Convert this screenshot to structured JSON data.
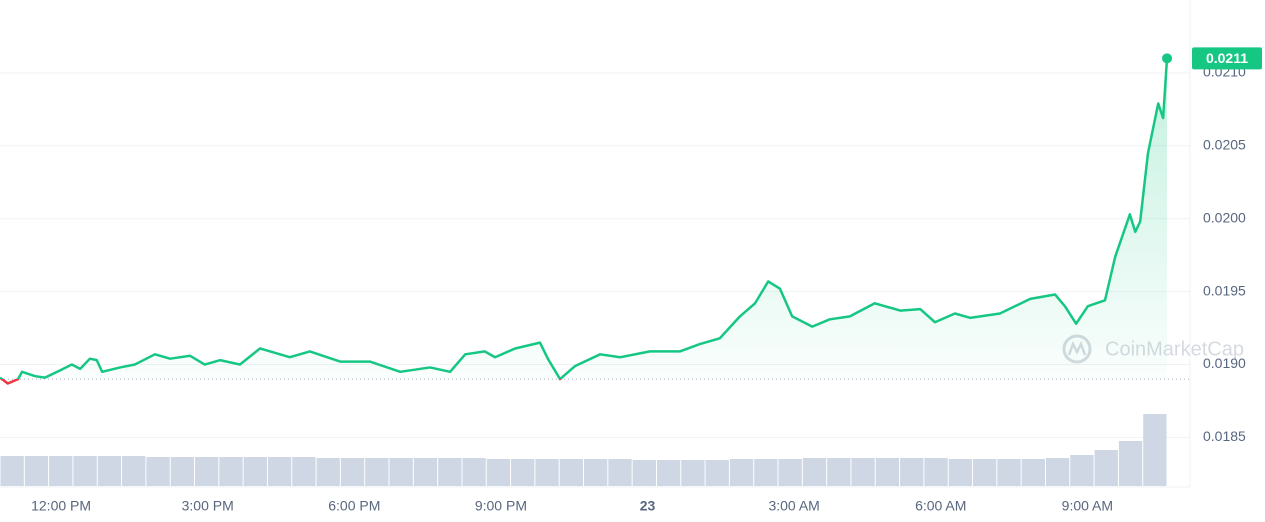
{
  "chart_data": {
    "type": "line",
    "series": [
      {
        "name": "Price",
        "color": "#16c784",
        "x": [
          -1.25,
          -1.09,
          -0.88,
          -0.8,
          -0.53,
          -0.33,
          -0.02,
          0.22,
          0.39,
          0.59,
          0.73,
          0.84,
          1.21,
          1.51,
          1.92,
          2.23,
          2.64,
          2.94,
          3.25,
          3.66,
          4.07,
          4.68,
          5.09,
          5.71,
          6.32,
          6.94,
          7.55,
          7.96,
          8.27,
          8.67,
          8.88,
          9.29,
          9.8,
          9.96,
          10.21,
          10.52,
          11.03,
          11.44,
          12.05,
          12.66,
          13.07,
          13.48,
          13.89,
          14.2,
          14.47,
          14.71,
          14.96,
          15.37,
          15.73,
          16.14,
          16.65,
          17.17,
          17.58,
          17.88,
          18.29,
          18.6,
          19.21,
          19.83,
          20.34,
          20.54,
          20.77,
          21.01,
          21.36,
          21.57,
          21.87,
          21.98,
          22.08,
          22.24,
          22.45,
          22.55,
          22.63
        ],
        "values": [
          0.01891,
          0.01887,
          0.0189,
          0.01895,
          0.01892,
          0.01891,
          0.01896,
          0.019,
          0.01897,
          0.01904,
          0.01903,
          0.01895,
          0.01898,
          0.019,
          0.01907,
          0.01904,
          0.01906,
          0.019,
          0.01903,
          0.019,
          0.01911,
          0.01905,
          0.01909,
          0.01902,
          0.01902,
          0.01895,
          0.01898,
          0.01895,
          0.01907,
          0.01909,
          0.01905,
          0.01911,
          0.01915,
          0.01904,
          0.0189,
          0.01899,
          0.01907,
          0.01905,
          0.01909,
          0.01909,
          0.01914,
          0.01918,
          0.01933,
          0.01942,
          0.01957,
          0.01952,
          0.01933,
          0.01926,
          0.01931,
          0.01933,
          0.01942,
          0.01937,
          0.01938,
          0.01929,
          0.01935,
          0.01932,
          0.01935,
          0.01945,
          0.01948,
          0.0194,
          0.01928,
          0.0194,
          0.01944,
          0.01974,
          0.02003,
          0.01991,
          0.01998,
          0.02045,
          0.02079,
          0.02069,
          0.0211
        ]
      }
    ],
    "down_color": "#ea3943",
    "baseline": 0.0189,
    "current_price": {
      "value": 0.0211,
      "label": "0.0211"
    },
    "volume": {
      "color": "#cfd6e4",
      "values": [
        30,
        30,
        30,
        30,
        30,
        30,
        29,
        29,
        29,
        29,
        29,
        29,
        29,
        28,
        28,
        28,
        28,
        28,
        28,
        28,
        27,
        27,
        27,
        27,
        27,
        27,
        26,
        26,
        26,
        26,
        27,
        27,
        27,
        28,
        28,
        28,
        28,
        28,
        28,
        27,
        27,
        27,
        27,
        28,
        31,
        36,
        45,
        72
      ]
    },
    "xlim": [
      -1.25,
      23.1
    ],
    "ylim": [
      0.01816,
      0.0215
    ],
    "xticks": [
      {
        "value": 0,
        "label": "12:00 PM"
      },
      {
        "value": 3,
        "label": "3:00 PM"
      },
      {
        "value": 6,
        "label": "6:00 PM"
      },
      {
        "value": 9,
        "label": "9:00 PM"
      },
      {
        "value": 12,
        "label": "23"
      },
      {
        "value": 15,
        "label": "3:00 AM"
      },
      {
        "value": 18,
        "label": "6:00 AM"
      },
      {
        "value": 21,
        "label": "9:00 AM"
      }
    ],
    "yticks": [
      0.0185,
      {
        "value": 0.019,
        "label": "0.0190"
      },
      0.0195,
      {
        "value": 0.02,
        "label": "0.0200"
      },
      0.0205,
      {
        "value": 0.021,
        "label": "0.0210"
      }
    ],
    "grid": true,
    "watermark": "CoinMarketCap"
  }
}
